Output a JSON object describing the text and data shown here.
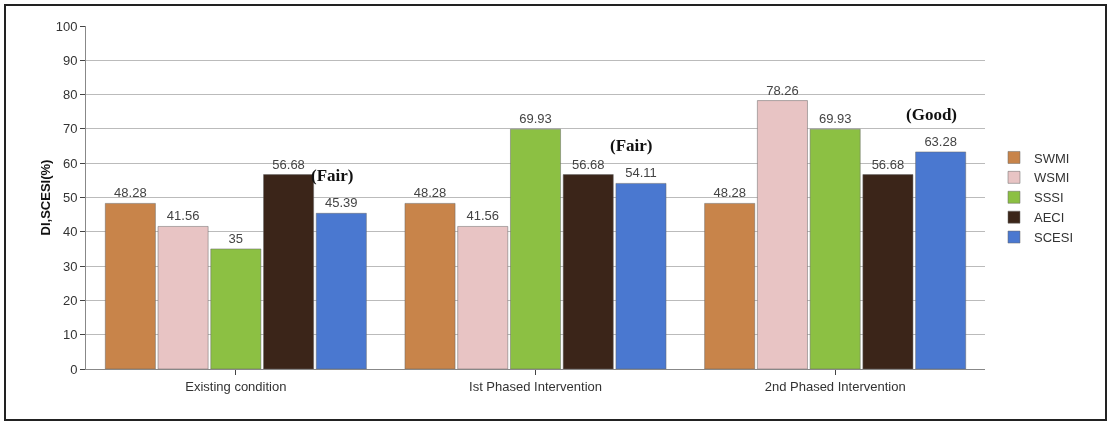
{
  "chart_data": {
    "type": "bar",
    "ylabel": "DI,SCESI(%)",
    "categories": [
      "Existing condition",
      "Ist Phased Intervention",
      "2nd Phased Intervention"
    ],
    "series": [
      {
        "name": "SWMI",
        "color": "#c8844a",
        "values": [
          48.28,
          48.28,
          48.28
        ]
      },
      {
        "name": "WSMI",
        "color": "#e8c4c4",
        "values": [
          41.56,
          41.56,
          78.26
        ]
      },
      {
        "name": "SSSI",
        "color": "#8cc043",
        "values": [
          35,
          69.93,
          69.93
        ]
      },
      {
        "name": "AECI",
        "color": "#3b2519",
        "values": [
          56.68,
          56.68,
          56.68
        ]
      },
      {
        "name": "SCESI",
        "color": "#4a78d0",
        "values": [
          45.39,
          54.11,
          63.28
        ]
      }
    ],
    "ylim": [
      0,
      100
    ],
    "yticks": [
      0,
      10,
      20,
      30,
      40,
      50,
      60,
      70,
      80,
      90,
      100
    ],
    "grid": "y",
    "legend": "right",
    "data_labels": true,
    "annotations": [
      "(Fair)",
      "(Fair)",
      "(Good)"
    ]
  }
}
